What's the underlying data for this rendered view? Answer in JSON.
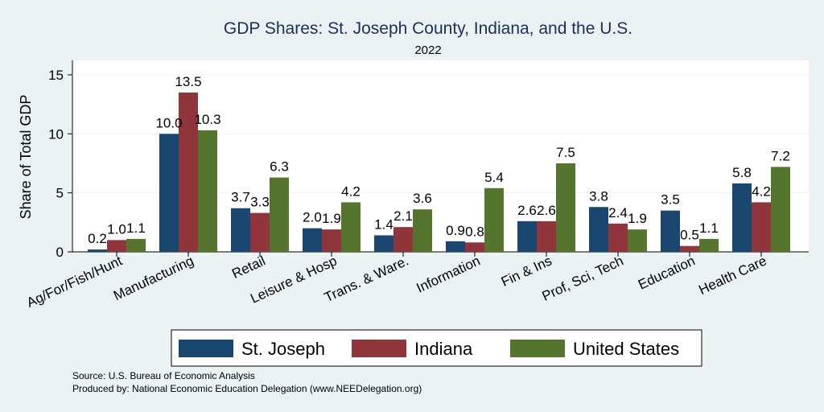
{
  "chart_data": {
    "type": "bar",
    "title": "GDP Shares: St. Joseph County, Indiana, and the U.S.",
    "subtitle": "2022",
    "ylabel": "Share of Total GDP",
    "xlabel": "",
    "ylim": [
      0,
      16.2
    ],
    "yticks": [
      0,
      5,
      10,
      15
    ],
    "grid": true,
    "legend_position": "bottom",
    "categories": [
      "Ag/For/Fish/Hunt",
      "Manufacturing",
      "Retail",
      "Leisure & Hosp",
      "Trans. & Ware.",
      "Information",
      "Fin & Ins",
      "Prof, Sci, Tech",
      "Education",
      "Health Care"
    ],
    "series": [
      {
        "name": "St. Joseph",
        "color": "#1a476f",
        "values": [
          0.2,
          10.0,
          3.7,
          2.0,
          1.4,
          0.9,
          2.6,
          3.8,
          3.5,
          5.8
        ]
      },
      {
        "name": "Indiana",
        "color": "#90353b",
        "values": [
          1.0,
          13.5,
          3.3,
          1.9,
          2.1,
          0.8,
          2.6,
          2.4,
          0.5,
          4.2
        ]
      },
      {
        "name": "United States",
        "color": "#55752f",
        "values": [
          1.1,
          10.3,
          6.3,
          4.2,
          3.6,
          5.4,
          7.5,
          1.9,
          1.1,
          7.2
        ]
      }
    ]
  },
  "notes": {
    "source": "Source: U.S. Bureau of Economic Analysis",
    "produced": "Produced by: National Economic Education Delegation (www.NEEDelegation.org)"
  }
}
